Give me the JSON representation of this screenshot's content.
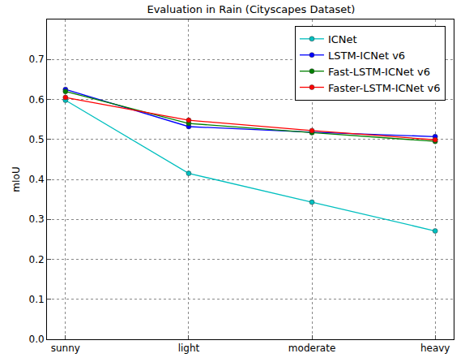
{
  "chart_data": {
    "type": "line",
    "title": "Evaluation in Rain (Cityscapes Dataset)",
    "y_label": "mIoU",
    "categories": [
      "sunny",
      "light",
      "moderate",
      "heavy"
    ],
    "series": [
      {
        "name": "ICNet",
        "color": "#00bfbf",
        "values": [
          0.598,
          0.415,
          0.343,
          0.271
        ],
        "marker": "circle"
      },
      {
        "name": "LSTM-ICNet v6",
        "color": "#0000ff",
        "values": [
          0.625,
          0.532,
          0.518,
          0.507
        ],
        "marker": "circle"
      },
      {
        "name": "Fast-LSTM-ICNet v6",
        "color": "#008000",
        "values": [
          0.62,
          0.54,
          0.517,
          0.495
        ],
        "marker": "circle"
      },
      {
        "name": "Faster-LSTM-ICNet v6",
        "color": "#ff0000",
        "values": [
          0.605,
          0.548,
          0.522,
          0.499
        ],
        "marker": "circle"
      }
    ],
    "ylim": [
      0,
      0.8
    ],
    "yticks": [
      {
        "value": 0,
        "label": "0.0"
      },
      0.1,
      0.2,
      0.3,
      0.4,
      0.5,
      0.6,
      0.7
    ],
    "grid": true,
    "legend": "upper right"
  }
}
